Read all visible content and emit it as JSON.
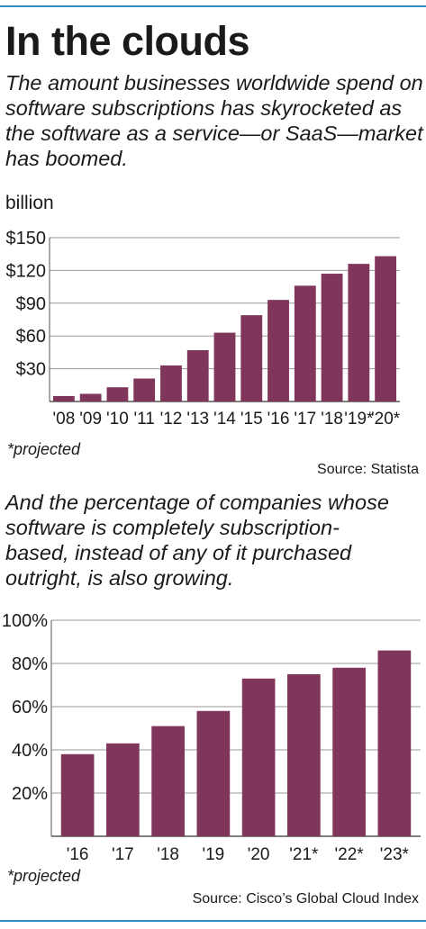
{
  "header": {
    "title": "In the clouds",
    "dek1": "The amount businesses worldwide spend on software subscriptions has skyrocketed as the software as a service—or SaaS—market has boomed.",
    "dek2": "And the percentage of companies whose software is completely subscription-based, instead of any of it purchased outright, is also growing."
  },
  "chart1": {
    "unit_label": "billion",
    "note": "*projected",
    "source": "Source: Statista"
  },
  "chart2": {
    "note": "*projected",
    "source": "Source: Cisco’s Global Cloud Index"
  },
  "colors": {
    "bar": "#80355a",
    "rule": "#2b8bc7"
  },
  "chart_data": [
    {
      "type": "bar",
      "title": "",
      "ylabel": "billion",
      "categories": [
        "'08",
        "'09",
        "'10",
        "'11",
        "'12",
        "'13",
        "'14",
        "'15",
        "'16",
        "'17",
        "'18",
        "'19*",
        "'20*"
      ],
      "values": [
        5,
        7,
        13,
        21,
        33,
        47,
        63,
        79,
        93,
        106,
        117,
        126,
        133
      ],
      "y_ticks": [
        "$30",
        "$60",
        "$90",
        "$120",
        "$150"
      ],
      "y_tick_values": [
        30,
        60,
        90,
        120,
        150
      ],
      "ylim": [
        0,
        150
      ],
      "grid": true
    },
    {
      "type": "bar",
      "title": "",
      "categories": [
        "'16",
        "'17",
        "'18",
        "'19",
        "'20",
        "'21*",
        "'22*",
        "'23*"
      ],
      "values": [
        38,
        43,
        51,
        58,
        73,
        75,
        78,
        86
      ],
      "y_ticks": [
        "20%",
        "40%",
        "60%",
        "80%",
        "100%"
      ],
      "y_tick_values": [
        20,
        40,
        60,
        80,
        100
      ],
      "ylim": [
        0,
        100
      ],
      "grid": true
    }
  ]
}
